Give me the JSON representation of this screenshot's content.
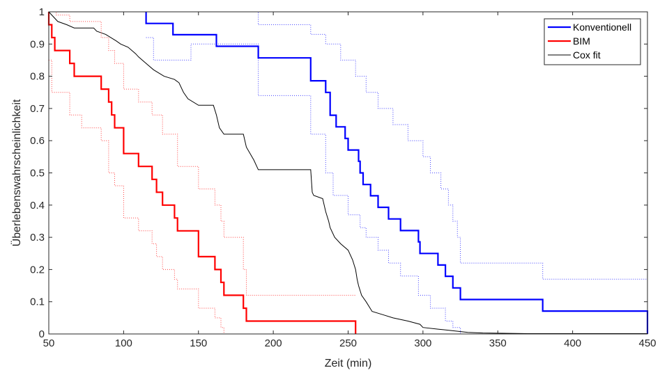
{
  "chart_data": {
    "type": "line",
    "title": "",
    "xlabel": "Zeit (min)",
    "ylabel": "Überlebenswahrscheinlichkeit",
    "xlim": [
      50,
      450
    ],
    "ylim": [
      0,
      1
    ],
    "xticks": [
      "50",
      "100",
      "150",
      "200",
      "250",
      "300",
      "350",
      "400",
      "450"
    ],
    "yticks": [
      "0",
      "0.1",
      "0.2",
      "0.3",
      "0.4",
      "0.5",
      "0.6",
      "0.7",
      "0.8",
      "0.9",
      "1"
    ],
    "grid": false,
    "legend_position": "top-right",
    "series": [
      {
        "name": "Konventionell",
        "color": "#0000ff",
        "style": "step",
        "points": [
          [
            115,
            1
          ],
          [
            115,
            0.964
          ],
          [
            133,
            0.964
          ],
          [
            133,
            0.929
          ],
          [
            162,
            0.929
          ],
          [
            162,
            0.893
          ],
          [
            190,
            0.893
          ],
          [
            190,
            0.857
          ],
          [
            225,
            0.857
          ],
          [
            225,
            0.786
          ],
          [
            235,
            0.786
          ],
          [
            235,
            0.75
          ],
          [
            238,
            0.75
          ],
          [
            238,
            0.679
          ],
          [
            242,
            0.679
          ],
          [
            242,
            0.643
          ],
          [
            248,
            0.643
          ],
          [
            248,
            0.607
          ],
          [
            250,
            0.607
          ],
          [
            250,
            0.571
          ],
          [
            257,
            0.571
          ],
          [
            257,
            0.536
          ],
          [
            258,
            0.536
          ],
          [
            258,
            0.5
          ],
          [
            260,
            0.5
          ],
          [
            260,
            0.464
          ],
          [
            265,
            0.464
          ],
          [
            265,
            0.429
          ],
          [
            270,
            0.429
          ],
          [
            270,
            0.393
          ],
          [
            277,
            0.393
          ],
          [
            277,
            0.357
          ],
          [
            285,
            0.357
          ],
          [
            285,
            0.321
          ],
          [
            297,
            0.321
          ],
          [
            297,
            0.286
          ],
          [
            298,
            0.286
          ],
          [
            298,
            0.25
          ],
          [
            310,
            0.25
          ],
          [
            310,
            0.214
          ],
          [
            315,
            0.214
          ],
          [
            315,
            0.179
          ],
          [
            320,
            0.179
          ],
          [
            320,
            0.143
          ],
          [
            325,
            0.143
          ],
          [
            325,
            0.107
          ],
          [
            380,
            0.107
          ],
          [
            380,
            0.071
          ],
          [
            450,
            0.071
          ],
          [
            450,
            0
          ]
        ]
      },
      {
        "name": "BIM",
        "color": "#ff0000",
        "style": "step",
        "points": [
          [
            50,
            1
          ],
          [
            50,
            0.96
          ],
          [
            52,
            0.96
          ],
          [
            52,
            0.92
          ],
          [
            54,
            0.92
          ],
          [
            54,
            0.88
          ],
          [
            64,
            0.88
          ],
          [
            64,
            0.84
          ],
          [
            67,
            0.84
          ],
          [
            67,
            0.8
          ],
          [
            85,
            0.8
          ],
          [
            85,
            0.76
          ],
          [
            90,
            0.76
          ],
          [
            90,
            0.72
          ],
          [
            92,
            0.72
          ],
          [
            92,
            0.68
          ],
          [
            94,
            0.68
          ],
          [
            94,
            0.64
          ],
          [
            100,
            0.64
          ],
          [
            100,
            0.56
          ],
          [
            110,
            0.56
          ],
          [
            110,
            0.52
          ],
          [
            119,
            0.52
          ],
          [
            119,
            0.48
          ],
          [
            122,
            0.48
          ],
          [
            122,
            0.44
          ],
          [
            126,
            0.44
          ],
          [
            126,
            0.4
          ],
          [
            134,
            0.4
          ],
          [
            134,
            0.36
          ],
          [
            136,
            0.36
          ],
          [
            136,
            0.32
          ],
          [
            150,
            0.32
          ],
          [
            150,
            0.24
          ],
          [
            161,
            0.24
          ],
          [
            161,
            0.2
          ],
          [
            165,
            0.2
          ],
          [
            165,
            0.16
          ],
          [
            167,
            0.16
          ],
          [
            167,
            0.12
          ],
          [
            180,
            0.12
          ],
          [
            180,
            0.08
          ],
          [
            182,
            0.08
          ],
          [
            182,
            0.04
          ],
          [
            255,
            0.04
          ],
          [
            255,
            0
          ]
        ]
      },
      {
        "name": "Cox fit",
        "color": "#000000",
        "style": "step",
        "points": [
          [
            50,
            1
          ],
          [
            52,
            0.99
          ],
          [
            56,
            0.97
          ],
          [
            62,
            0.96
          ],
          [
            67,
            0.95
          ],
          [
            80,
            0.95
          ],
          [
            82,
            0.94
          ],
          [
            88,
            0.93
          ],
          [
            95,
            0.91
          ],
          [
            98,
            0.9
          ],
          [
            103,
            0.89
          ],
          [
            108,
            0.87
          ],
          [
            110,
            0.86
          ],
          [
            115,
            0.84
          ],
          [
            120,
            0.82
          ],
          [
            127,
            0.8
          ],
          [
            134,
            0.79
          ],
          [
            137,
            0.78
          ],
          [
            140,
            0.75
          ],
          [
            143,
            0.73
          ],
          [
            150,
            0.71
          ],
          [
            160,
            0.71
          ],
          [
            162,
            0.68
          ],
          [
            164,
            0.64
          ],
          [
            167,
            0.62
          ],
          [
            180,
            0.62
          ],
          [
            182,
            0.58
          ],
          [
            187,
            0.54
          ],
          [
            190,
            0.51
          ],
          [
            225,
            0.51
          ],
          [
            226,
            0.44
          ],
          [
            227,
            0.43
          ],
          [
            233,
            0.42
          ],
          [
            235,
            0.38
          ],
          [
            237,
            0.35
          ],
          [
            238,
            0.33
          ],
          [
            241,
            0.3
          ],
          [
            245,
            0.28
          ],
          [
            250,
            0.26
          ],
          [
            253,
            0.23
          ],
          [
            255,
            0.2
          ],
          [
            256,
            0.17
          ],
          [
            257,
            0.15
          ],
          [
            259,
            0.12
          ],
          [
            262,
            0.1
          ],
          [
            266,
            0.07
          ],
          [
            273,
            0.06
          ],
          [
            280,
            0.05
          ],
          [
            290,
            0.04
          ],
          [
            298,
            0.03
          ],
          [
            300,
            0.02
          ],
          [
            310,
            0.015
          ],
          [
            320,
            0.01
          ],
          [
            330,
            0.005
          ],
          [
            340,
            0.003
          ],
          [
            370,
            0.001
          ],
          [
            450,
            0.001
          ]
        ]
      },
      {
        "name": "",
        "color": "#0000ff",
        "style": "step",
        "dotted": true,
        "points": [
          [
            115,
            1
          ],
          [
            190,
            1
          ],
          [
            190,
            0.96
          ],
          [
            225,
            0.96
          ],
          [
            225,
            0.93
          ],
          [
            235,
            0.93
          ],
          [
            235,
            0.9
          ],
          [
            245,
            0.9
          ],
          [
            245,
            0.85
          ],
          [
            255,
            0.85
          ],
          [
            255,
            0.8
          ],
          [
            262,
            0.8
          ],
          [
            262,
            0.75
          ],
          [
            270,
            0.75
          ],
          [
            270,
            0.7
          ],
          [
            280,
            0.7
          ],
          [
            280,
            0.65
          ],
          [
            290,
            0.65
          ],
          [
            290,
            0.6
          ],
          [
            300,
            0.6
          ],
          [
            300,
            0.55
          ],
          [
            305,
            0.55
          ],
          [
            305,
            0.5
          ],
          [
            312,
            0.5
          ],
          [
            312,
            0.45
          ],
          [
            317,
            0.45
          ],
          [
            317,
            0.4
          ],
          [
            320,
            0.4
          ],
          [
            320,
            0.35
          ],
          [
            323,
            0.35
          ],
          [
            323,
            0.3
          ],
          [
            325,
            0.3
          ],
          [
            325,
            0.22
          ],
          [
            380,
            0.22
          ],
          [
            380,
            0.17
          ],
          [
            450,
            0.17
          ]
        ]
      },
      {
        "name": "",
        "color": "#0000ff",
        "style": "step",
        "dotted": true,
        "points": [
          [
            115,
            0.92
          ],
          [
            120,
            0.92
          ],
          [
            120,
            0.85
          ],
          [
            145,
            0.85
          ],
          [
            145,
            0.9
          ],
          [
            190,
            0.9
          ],
          [
            190,
            0.74
          ],
          [
            225,
            0.74
          ],
          [
            225,
            0.62
          ],
          [
            235,
            0.62
          ],
          [
            235,
            0.5
          ],
          [
            240,
            0.5
          ],
          [
            240,
            0.43
          ],
          [
            250,
            0.43
          ],
          [
            250,
            0.37
          ],
          [
            258,
            0.37
          ],
          [
            258,
            0.33
          ],
          [
            262,
            0.33
          ],
          [
            262,
            0.3
          ],
          [
            270,
            0.3
          ],
          [
            270,
            0.26
          ],
          [
            277,
            0.26
          ],
          [
            277,
            0.22
          ],
          [
            285,
            0.22
          ],
          [
            285,
            0.18
          ],
          [
            297,
            0.18
          ],
          [
            297,
            0.12
          ],
          [
            305,
            0.12
          ],
          [
            305,
            0.08
          ],
          [
            315,
            0.08
          ],
          [
            315,
            0.04
          ],
          [
            320,
            0.04
          ],
          [
            320,
            0.02
          ],
          [
            325,
            0.02
          ],
          [
            325,
            0
          ]
        ]
      },
      {
        "name": "",
        "color": "#ff0000",
        "style": "step",
        "dotted": true,
        "points": [
          [
            50,
            1
          ],
          [
            55,
            1
          ],
          [
            55,
            0.99
          ],
          [
            64,
            0.99
          ],
          [
            64,
            0.97
          ],
          [
            85,
            0.97
          ],
          [
            85,
            0.92
          ],
          [
            90,
            0.92
          ],
          [
            90,
            0.88
          ],
          [
            94,
            0.88
          ],
          [
            94,
            0.84
          ],
          [
            100,
            0.84
          ],
          [
            100,
            0.76
          ],
          [
            110,
            0.76
          ],
          [
            110,
            0.72
          ],
          [
            119,
            0.72
          ],
          [
            119,
            0.68
          ],
          [
            126,
            0.68
          ],
          [
            126,
            0.62
          ],
          [
            136,
            0.62
          ],
          [
            136,
            0.52
          ],
          [
            150,
            0.52
          ],
          [
            150,
            0.45
          ],
          [
            161,
            0.45
          ],
          [
            161,
            0.4
          ],
          [
            165,
            0.4
          ],
          [
            165,
            0.35
          ],
          [
            167,
            0.35
          ],
          [
            167,
            0.3
          ],
          [
            180,
            0.3
          ],
          [
            180,
            0.2
          ],
          [
            182,
            0.2
          ],
          [
            182,
            0.12
          ],
          [
            255,
            0.12
          ]
        ]
      },
      {
        "name": "",
        "color": "#ff0000",
        "style": "step",
        "dotted": true,
        "points": [
          [
            50,
            0.85
          ],
          [
            52,
            0.85
          ],
          [
            52,
            0.75
          ],
          [
            64,
            0.75
          ],
          [
            64,
            0.68
          ],
          [
            72,
            0.68
          ],
          [
            72,
            0.64
          ],
          [
            85,
            0.64
          ],
          [
            85,
            0.6
          ],
          [
            90,
            0.6
          ],
          [
            90,
            0.5
          ],
          [
            94,
            0.5
          ],
          [
            94,
            0.46
          ],
          [
            100,
            0.46
          ],
          [
            100,
            0.36
          ],
          [
            110,
            0.36
          ],
          [
            110,
            0.32
          ],
          [
            119,
            0.32
          ],
          [
            119,
            0.28
          ],
          [
            122,
            0.28
          ],
          [
            122,
            0.24
          ],
          [
            126,
            0.24
          ],
          [
            126,
            0.2
          ],
          [
            134,
            0.2
          ],
          [
            134,
            0.17
          ],
          [
            136,
            0.17
          ],
          [
            136,
            0.14
          ],
          [
            150,
            0.14
          ],
          [
            150,
            0.08
          ],
          [
            161,
            0.08
          ],
          [
            161,
            0.05
          ],
          [
            165,
            0.05
          ],
          [
            165,
            0.02
          ],
          [
            167,
            0.02
          ],
          [
            167,
            0
          ]
        ]
      }
    ]
  }
}
